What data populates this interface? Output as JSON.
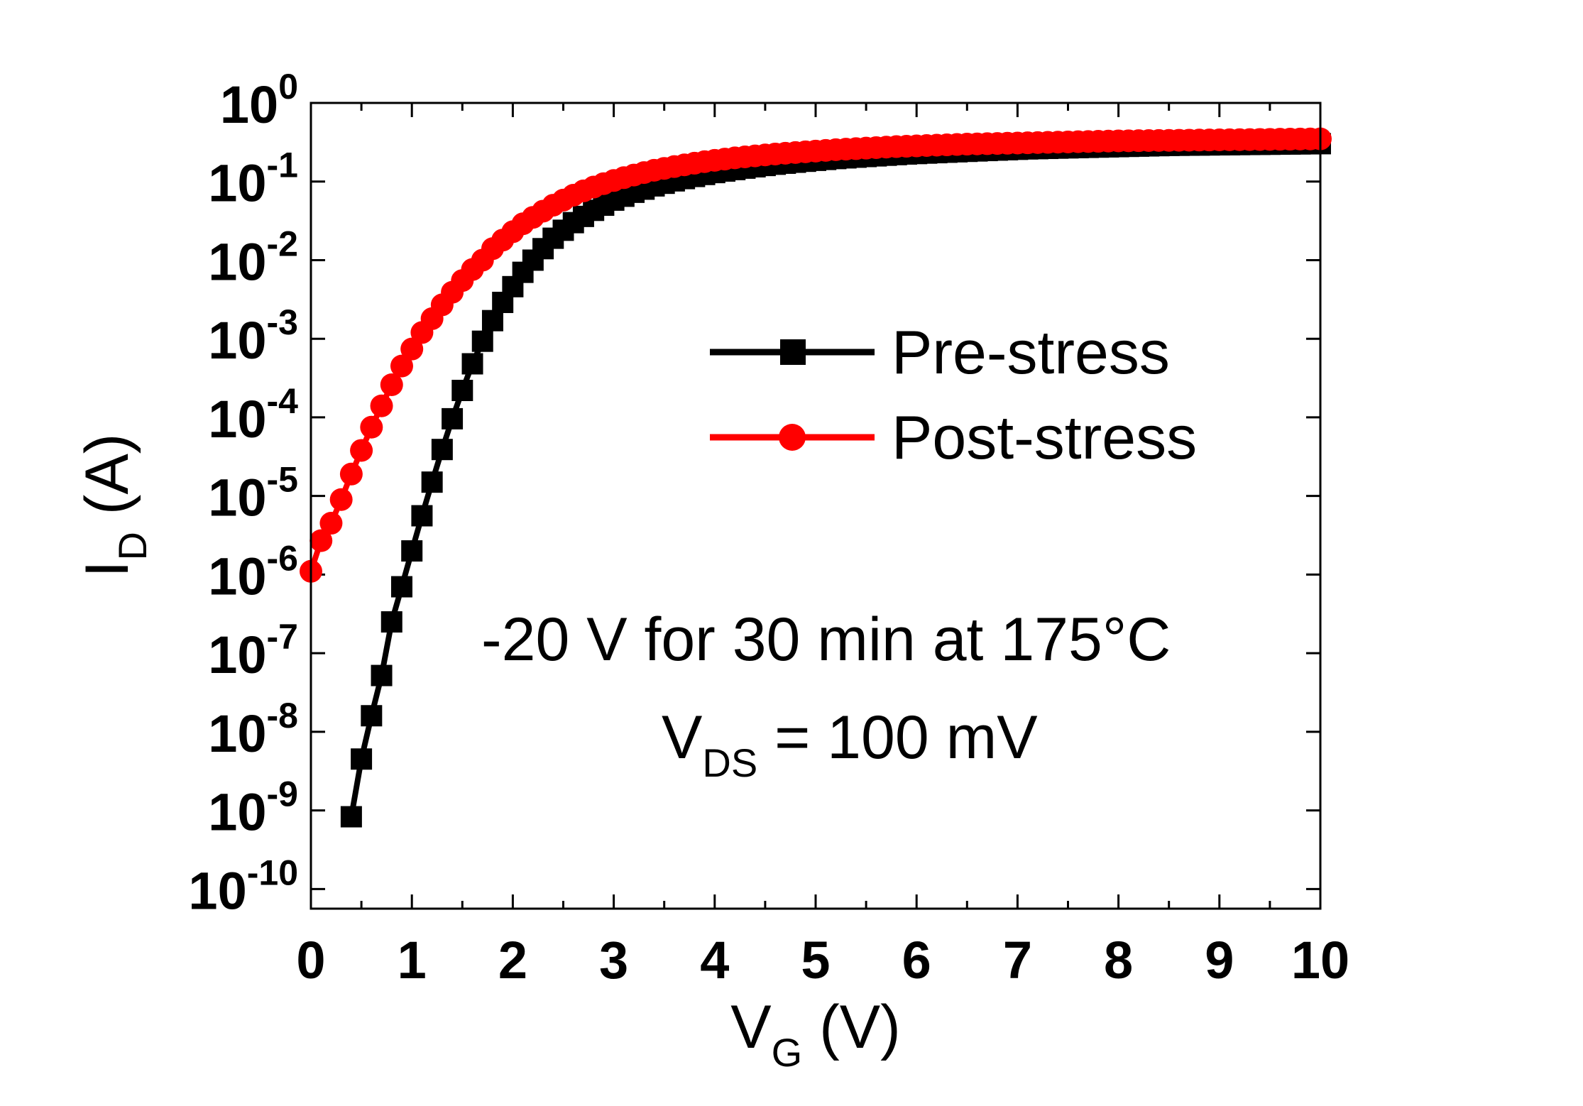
{
  "chart_data": {
    "type": "line",
    "xlabel": {
      "main": "V",
      "sub": "G",
      "unit": " (V)"
    },
    "ylabel": {
      "main": "I",
      "sub": "D",
      "unit": " (A)"
    },
    "xlim": [
      0,
      10
    ],
    "ylim_log10": [
      -10.25,
      0
    ],
    "y_scale": "log",
    "grid": false,
    "legend_position": "upper right",
    "x_ticks": [
      0,
      1,
      2,
      3,
      4,
      5,
      6,
      7,
      8,
      9,
      10
    ],
    "x_tick_labels": [
      "0",
      "1",
      "2",
      "3",
      "4",
      "5",
      "6",
      "7",
      "8",
      "9",
      "10"
    ],
    "y_ticks_log10": [
      0,
      -1,
      -2,
      -3,
      -4,
      -5,
      -6,
      -7,
      -8,
      -9,
      -10
    ],
    "y_tick_labels": [
      {
        "base": "10",
        "exp": "0"
      },
      {
        "base": "10",
        "exp": "-1"
      },
      {
        "base": "10",
        "exp": "-2"
      },
      {
        "base": "10",
        "exp": "-3"
      },
      {
        "base": "10",
        "exp": "-4"
      },
      {
        "base": "10",
        "exp": "-5"
      },
      {
        "base": "10",
        "exp": "-6"
      },
      {
        "base": "10",
        "exp": "-7"
      },
      {
        "base": "10",
        "exp": "-8"
      },
      {
        "base": "10",
        "exp": "-9"
      },
      {
        "base": "10",
        "exp": "-10"
      }
    ],
    "annotations": [
      {
        "text": "-20 V for 30 min at 175°C"
      },
      {
        "main": "V",
        "sub": "DS",
        "rest": " = 100 mV"
      }
    ],
    "series": [
      {
        "name": "Pre-stress",
        "color": "#000000",
        "marker": "square",
        "x": [
          0.4,
          0.5,
          0.6,
          0.7,
          0.8,
          0.9,
          1.0,
          1.1,
          1.2,
          1.3,
          1.4,
          1.5,
          1.6,
          1.7,
          1.8,
          1.9,
          2.0,
          2.1,
          2.2,
          2.3,
          2.4,
          2.5,
          2.6,
          2.7,
          2.8,
          2.9,
          3.0,
          3.1,
          3.2,
          3.3,
          3.4,
          3.5,
          3.6,
          3.7,
          3.8,
          3.9,
          4.0,
          4.1,
          4.2,
          4.3,
          4.4,
          4.5,
          4.6,
          4.7,
          4.8,
          4.9,
          5.0,
          5.1,
          5.2,
          5.3,
          5.4,
          5.5,
          5.6,
          5.7,
          5.8,
          5.9,
          6.0,
          6.1,
          6.2,
          6.3,
          6.4,
          6.5,
          6.6,
          6.7,
          6.8,
          6.9,
          7.0,
          7.1,
          7.2,
          7.3,
          7.4,
          7.5,
          7.6,
          7.7,
          7.8,
          7.9,
          8.0,
          8.1,
          8.2,
          8.3,
          8.4,
          8.5,
          8.6,
          8.7,
          8.8,
          8.9,
          9.0,
          9.1,
          9.2,
          9.3,
          9.4,
          9.5,
          9.6,
          9.7,
          9.8,
          9.9,
          10.0
        ],
        "y": [
          8.3e-10,
          4.5e-09,
          1.6e-08,
          5.2e-08,
          2.5e-07,
          7e-07,
          2e-06,
          5.6e-06,
          1.5e-05,
          3.9e-05,
          9.6e-05,
          0.00022,
          0.00048,
          0.00093,
          0.0017,
          0.0029,
          0.0046,
          0.007,
          0.01,
          0.014,
          0.019,
          0.024,
          0.03,
          0.036,
          0.043,
          0.05,
          0.058,
          0.065,
          0.073,
          0.08,
          0.088,
          0.095,
          0.102,
          0.109,
          0.116,
          0.123,
          0.13,
          0.136,
          0.142,
          0.148,
          0.154,
          0.16,
          0.166,
          0.171,
          0.176,
          0.181,
          0.186,
          0.191,
          0.196,
          0.2,
          0.204,
          0.208,
          0.212,
          0.216,
          0.22,
          0.224,
          0.227,
          0.23,
          0.233,
          0.236,
          0.239,
          0.242,
          0.245,
          0.248,
          0.251,
          0.254,
          0.257,
          0.26,
          0.262,
          0.264,
          0.266,
          0.268,
          0.27,
          0.272,
          0.274,
          0.276,
          0.278,
          0.28,
          0.282,
          0.284,
          0.286,
          0.288,
          0.289,
          0.29,
          0.291,
          0.292,
          0.293,
          0.294,
          0.295,
          0.296,
          0.297,
          0.298,
          0.299,
          0.3,
          0.301,
          0.302,
          0.303
        ]
      },
      {
        "name": "Post-stress",
        "color": "#ff0000",
        "marker": "circle",
        "x": [
          0.0,
          0.1,
          0.2,
          0.3,
          0.4,
          0.5,
          0.6,
          0.7,
          0.8,
          0.9,
          1.0,
          1.1,
          1.2,
          1.3,
          1.4,
          1.5,
          1.6,
          1.7,
          1.8,
          1.9,
          2.0,
          2.1,
          2.2,
          2.3,
          2.4,
          2.5,
          2.6,
          2.7,
          2.8,
          2.9,
          3.0,
          3.1,
          3.2,
          3.3,
          3.4,
          3.5,
          3.6,
          3.7,
          3.8,
          3.9,
          4.0,
          4.1,
          4.2,
          4.3,
          4.4,
          4.5,
          4.6,
          4.7,
          4.8,
          4.9,
          5.0,
          5.1,
          5.2,
          5.3,
          5.4,
          5.5,
          5.6,
          5.7,
          5.8,
          5.9,
          6.0,
          6.1,
          6.2,
          6.3,
          6.4,
          6.5,
          6.6,
          6.7,
          6.8,
          6.9,
          7.0,
          7.1,
          7.2,
          7.3,
          7.4,
          7.5,
          7.6,
          7.7,
          7.8,
          7.9,
          8.0,
          8.1,
          8.2,
          8.3,
          8.4,
          8.5,
          8.6,
          8.7,
          8.8,
          8.9,
          9.0,
          9.1,
          9.2,
          9.3,
          9.4,
          9.5,
          9.6,
          9.7,
          9.8,
          9.9,
          10.0
        ],
        "y": [
          1.1e-06,
          2.7e-06,
          4.5e-06,
          9e-06,
          1.9e-05,
          3.8e-05,
          7.5e-05,
          0.00014,
          0.00026,
          0.00045,
          0.00074,
          0.0012,
          0.0018,
          0.0027,
          0.0039,
          0.0055,
          0.0076,
          0.01,
          0.014,
          0.018,
          0.023,
          0.029,
          0.035,
          0.042,
          0.05,
          0.058,
          0.067,
          0.076,
          0.085,
          0.094,
          0.103,
          0.112,
          0.121,
          0.13,
          0.139,
          0.147,
          0.155,
          0.163,
          0.171,
          0.179,
          0.186,
          0.193,
          0.2,
          0.206,
          0.212,
          0.218,
          0.224,
          0.229,
          0.234,
          0.239,
          0.244,
          0.249,
          0.254,
          0.258,
          0.262,
          0.266,
          0.27,
          0.274,
          0.278,
          0.281,
          0.284,
          0.287,
          0.29,
          0.293,
          0.296,
          0.299,
          0.301,
          0.303,
          0.305,
          0.307,
          0.309,
          0.311,
          0.313,
          0.315,
          0.317,
          0.319,
          0.321,
          0.323,
          0.325,
          0.327,
          0.329,
          0.33,
          0.331,
          0.332,
          0.333,
          0.334,
          0.335,
          0.336,
          0.337,
          0.338,
          0.339,
          0.34,
          0.341,
          0.342,
          0.343,
          0.344,
          0.345,
          0.346,
          0.347,
          0.348,
          0.349
        ]
      }
    ]
  }
}
